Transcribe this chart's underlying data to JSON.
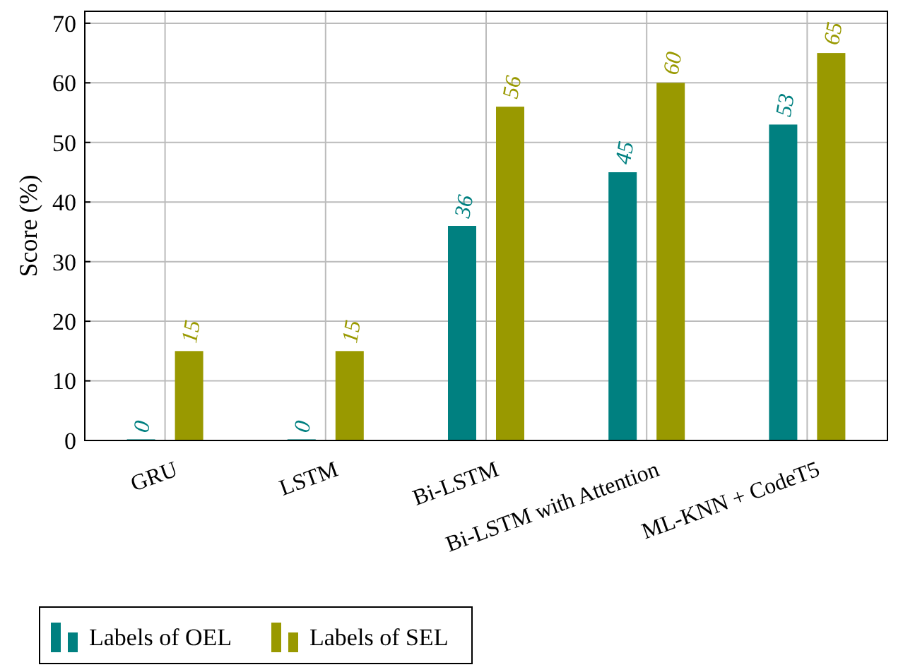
{
  "chart_data": {
    "type": "bar",
    "ylabel": "Score (%)",
    "categories": [
      "GRU",
      "LSTM",
      "Bi-LSTM",
      "Bi-LSTM with Attention",
      "ML-KNN + CodeT5"
    ],
    "series": [
      {
        "name": "Labels of OEL",
        "color": "#008080",
        "values": [
          0,
          0,
          36,
          45,
          53
        ]
      },
      {
        "name": "Labels of SEL",
        "color": "#999900",
        "values": [
          15,
          15,
          56,
          60,
          65
        ]
      }
    ],
    "ylim": [
      0,
      72
    ],
    "yticks": [
      0,
      10,
      20,
      30,
      40,
      50,
      60,
      70
    ],
    "grid": true,
    "legend": "bottom",
    "data_labels": true
  }
}
